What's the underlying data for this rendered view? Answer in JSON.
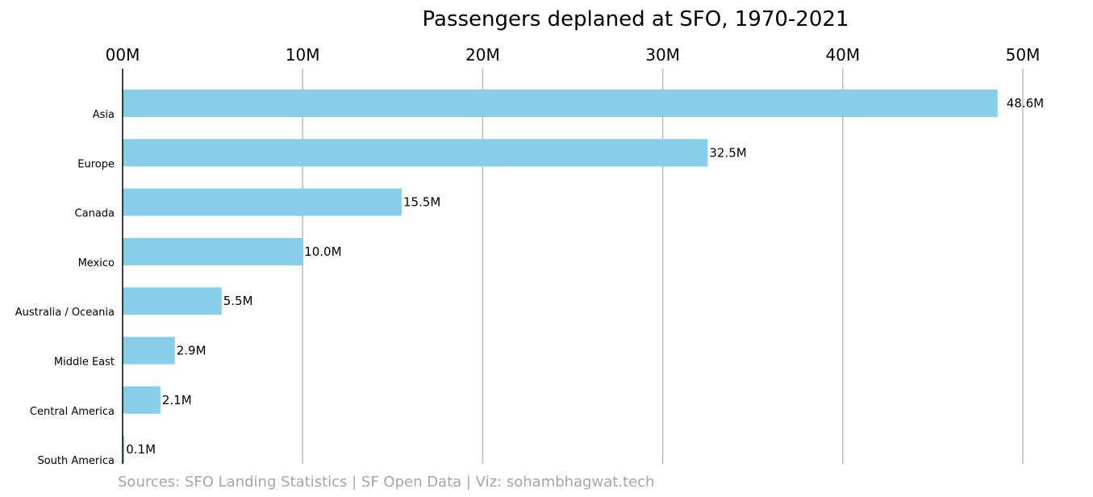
{
  "chart_data": {
    "type": "bar",
    "orientation": "horizontal",
    "title": "Passengers deplaned at SFO, 1970-2021",
    "categories": [
      "Asia",
      "Europe",
      "Canada",
      "Mexico",
      "Australia / Oceania",
      "Middle East",
      "Central America",
      "South America"
    ],
    "values": [
      48.6,
      32.5,
      15.5,
      10.0,
      5.5,
      2.9,
      2.1,
      0.1
    ],
    "value_unit": "M",
    "value_labels": [
      "48.6M",
      "32.5M",
      "15.5M",
      "10.0M",
      "5.5M",
      "2.9M",
      "2.1M",
      "0.1M"
    ],
    "x_ticks": [
      0,
      10,
      20,
      30,
      40,
      50
    ],
    "x_tick_labels": [
      "00M",
      "10M",
      "20M",
      "30M",
      "40M",
      "50M"
    ],
    "xlim": [
      0,
      50
    ],
    "x_axis_position": "top",
    "grid": "vertical",
    "bar_color": "#87ceeb",
    "grid_color": "#b0bcc6",
    "source": "Sources: SFO Landing Statistics | SF Open Data | Viz: sohambhagwat.tech"
  }
}
